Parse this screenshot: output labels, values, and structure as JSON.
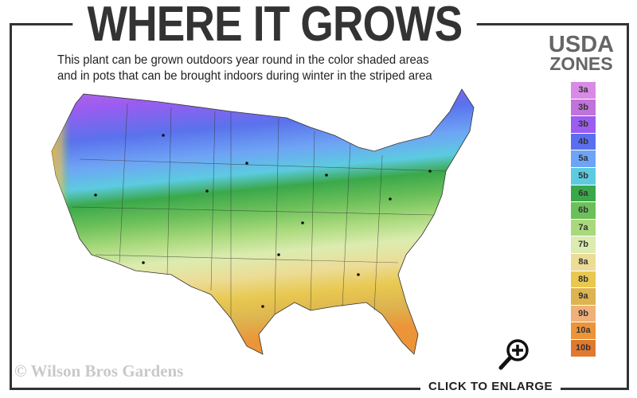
{
  "title": "WHERE IT GROWS",
  "subtitle_line1": "This plant can be grown outdoors year round in the color shaded areas",
  "subtitle_line2": "and in pots that can be brought indoors during winter in the striped area",
  "legend": {
    "title_line1": "USDA",
    "title_line2": "ZONES",
    "zones": [
      {
        "label": "3a",
        "color": "#d98ae6"
      },
      {
        "label": "3b",
        "color": "#c073d8"
      },
      {
        "label": "3b",
        "color": "#9b5cf0"
      },
      {
        "label": "4b",
        "color": "#5a6ff0"
      },
      {
        "label": "5a",
        "color": "#6ea4f5"
      },
      {
        "label": "5b",
        "color": "#5ccbe0"
      },
      {
        "label": "6a",
        "color": "#3aa84a"
      },
      {
        "label": "6b",
        "color": "#6cc05a"
      },
      {
        "label": "7a",
        "color": "#a9d97c"
      },
      {
        "label": "7b",
        "color": "#dcecb0"
      },
      {
        "label": "8a",
        "color": "#ecdc96"
      },
      {
        "label": "8b",
        "color": "#e8c850"
      },
      {
        "label": "9a",
        "color": "#ddb450"
      },
      {
        "label": "9b",
        "color": "#f0b07a"
      },
      {
        "label": "10a",
        "color": "#ec9438"
      },
      {
        "label": "10b",
        "color": "#e07a30"
      }
    ]
  },
  "watermark": "© Wilson Bros Gardens",
  "enlarge_label": "CLICK TO ENLARGE",
  "icons": {
    "zoom": "magnifier-plus-icon"
  }
}
